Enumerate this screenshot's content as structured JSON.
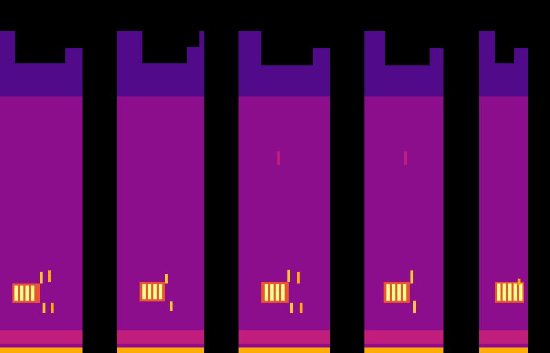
{
  "chart_data": {
    "type": "spectrogram",
    "xlim": [
      0,
      800
    ],
    "ylim": [
      0,
      513
    ],
    "grid": false,
    "tick_labels": false,
    "value_range": [
      0,
      1
    ],
    "cells": [
      [
        0,
        120,
        0,
        468,
        0.42
      ],
      [
        0,
        120,
        373,
        468,
        0.3
      ],
      [
        22,
        95,
        421,
        468,
        0
      ],
      [
        95,
        120,
        443,
        468,
        0
      ],
      [
        0,
        120,
        13,
        33,
        0.55
      ],
      [
        0,
        120,
        0,
        8,
        0.85
      ],
      [
        18,
        58,
        73,
        101,
        0.7
      ],
      [
        21,
        26,
        76,
        98,
        1
      ],
      [
        29,
        34,
        76,
        98,
        1
      ],
      [
        37,
        42,
        76,
        98,
        1
      ],
      [
        45,
        50,
        76,
        98,
        1
      ],
      [
        58,
        62,
        101,
        118,
        0.9
      ],
      [
        70,
        74,
        103,
        120,
        0.85
      ],
      [
        62,
        66,
        58,
        73,
        0.9
      ],
      [
        74,
        78,
        58,
        73,
        0.85
      ],
      [
        170,
        297,
        0,
        468,
        0.42
      ],
      [
        170,
        297,
        373,
        468,
        0.3
      ],
      [
        207,
        272,
        421,
        468,
        0
      ],
      [
        272,
        290,
        445,
        468,
        0
      ],
      [
        170,
        297,
        13,
        33,
        0.55
      ],
      [
        170,
        297,
        0,
        8,
        0.85
      ],
      [
        203,
        240,
        75,
        103,
        0.7
      ],
      [
        207,
        212,
        78,
        100,
        1
      ],
      [
        215,
        220,
        78,
        100,
        1
      ],
      [
        223,
        228,
        78,
        100,
        1
      ],
      [
        231,
        236,
        78,
        100,
        1
      ],
      [
        240,
        244,
        101,
        115,
        0.9
      ],
      [
        247,
        251,
        61,
        75,
        0.9
      ],
      [
        347,
        480,
        0,
        468,
        0.42
      ],
      [
        347,
        480,
        373,
        468,
        0.3
      ],
      [
        380,
        455,
        418,
        468,
        0
      ],
      [
        455,
        480,
        443,
        468,
        0
      ],
      [
        347,
        480,
        13,
        33,
        0.55
      ],
      [
        347,
        480,
        0,
        8,
        0.85
      ],
      [
        380,
        420,
        73,
        103,
        0.7
      ],
      [
        385,
        390,
        76,
        100,
        1
      ],
      [
        393,
        398,
        76,
        100,
        1
      ],
      [
        401,
        406,
        76,
        100,
        1
      ],
      [
        409,
        414,
        76,
        100,
        1
      ],
      [
        418,
        422,
        103,
        121,
        0.9
      ],
      [
        432,
        436,
        101,
        118,
        0.85
      ],
      [
        422,
        426,
        58,
        73,
        0.9
      ],
      [
        436,
        440,
        58,
        73,
        0.85
      ],
      [
        403,
        407,
        273,
        293,
        0.55
      ],
      [
        530,
        645,
        0,
        468,
        0.42
      ],
      [
        530,
        645,
        373,
        468,
        0.3
      ],
      [
        560,
        625,
        418,
        468,
        0
      ],
      [
        625,
        645,
        443,
        468,
        0
      ],
      [
        530,
        645,
        13,
        33,
        0.55
      ],
      [
        530,
        645,
        0,
        8,
        0.85
      ],
      [
        558,
        596,
        73,
        103,
        0.7
      ],
      [
        562,
        567,
        76,
        100,
        1
      ],
      [
        570,
        575,
        76,
        100,
        1
      ],
      [
        578,
        583,
        76,
        100,
        1
      ],
      [
        586,
        591,
        76,
        100,
        1
      ],
      [
        597,
        601,
        101,
        120,
        0.9
      ],
      [
        601,
        605,
        58,
        76,
        0.9
      ],
      [
        588,
        592,
        273,
        293,
        0.55
      ],
      [
        697,
        768,
        0,
        468,
        0.42
      ],
      [
        697,
        768,
        373,
        468,
        0.3
      ],
      [
        720,
        748,
        421,
        468,
        0
      ],
      [
        748,
        768,
        443,
        468,
        0
      ],
      [
        697,
        768,
        13,
        33,
        0.55
      ],
      [
        697,
        768,
        0,
        8,
        0.85
      ],
      [
        720,
        762,
        73,
        103,
        0.7
      ],
      [
        723,
        728,
        76,
        101,
        1
      ],
      [
        731,
        736,
        76,
        101,
        1
      ],
      [
        739,
        744,
        76,
        101,
        1
      ],
      [
        747,
        752,
        76,
        101,
        1
      ],
      [
        755,
        760,
        76,
        101,
        1
      ],
      [
        753,
        757,
        99,
        108,
        0.85
      ]
    ]
  }
}
